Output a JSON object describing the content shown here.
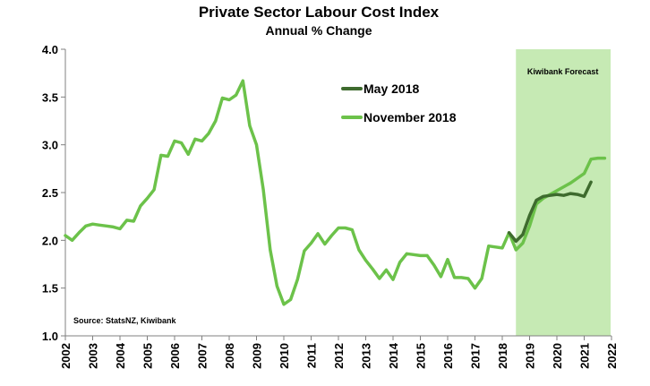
{
  "chart_data": {
    "type": "line",
    "title": "Private Sector Labour Cost Index",
    "subtitle": "Annual % Change",
    "source": "Source: StatsNZ, Kiwibank",
    "forecast_label": "Kiwibank Forecast",
    "forecast_start": 2018.5,
    "forecast_end": 2022,
    "forecast_color": "#c6eab4",
    "xlim": [
      2002,
      2022
    ],
    "ylim": [
      1.0,
      4.0
    ],
    "y_ticks": [
      "1.0",
      "1.5",
      "2.0",
      "2.5",
      "3.0",
      "3.5",
      "4.0"
    ],
    "x_ticks": [
      "2002",
      "2003",
      "2004",
      "2005",
      "2006",
      "2007",
      "2008",
      "2009",
      "2010",
      "2011",
      "2012",
      "2013",
      "2014",
      "2015",
      "2016",
      "2017",
      "2018",
      "2019",
      "2020",
      "2021",
      "2022"
    ],
    "grid": false,
    "legend_position": "top-center",
    "series": [
      {
        "name": "November 2018",
        "color": "#6cc24a",
        "x": [
          2002.0,
          2002.25,
          2002.5,
          2002.75,
          2003.0,
          2003.25,
          2003.5,
          2003.75,
          2004.0,
          2004.25,
          2004.5,
          2004.75,
          2005.0,
          2005.25,
          2005.5,
          2005.75,
          2006.0,
          2006.25,
          2006.5,
          2006.75,
          2007.0,
          2007.25,
          2007.5,
          2007.75,
          2008.0,
          2008.25,
          2008.5,
          2008.75,
          2009.0,
          2009.25,
          2009.5,
          2009.75,
          2010.0,
          2010.25,
          2010.5,
          2010.75,
          2011.0,
          2011.25,
          2011.5,
          2011.75,
          2012.0,
          2012.25,
          2012.5,
          2012.75,
          2013.0,
          2013.25,
          2013.5,
          2013.75,
          2014.0,
          2014.25,
          2014.5,
          2014.75,
          2015.0,
          2015.25,
          2015.5,
          2015.75,
          2016.0,
          2016.25,
          2016.5,
          2016.75,
          2017.0,
          2017.25,
          2017.5,
          2017.75,
          2018.0,
          2018.25,
          2018.5,
          2018.75,
          2019.0,
          2019.25,
          2019.5,
          2019.75,
          2020.0,
          2020.25,
          2020.5,
          2020.75,
          2021.0,
          2021.25,
          2021.5,
          2021.75
        ],
        "values": [
          2.05,
          2.0,
          2.08,
          2.15,
          2.17,
          2.16,
          2.15,
          2.14,
          2.12,
          2.21,
          2.2,
          2.36,
          2.44,
          2.53,
          2.89,
          2.88,
          3.04,
          3.02,
          2.9,
          3.06,
          3.04,
          3.12,
          3.25,
          3.49,
          3.47,
          3.52,
          3.67,
          3.2,
          3.0,
          2.53,
          1.9,
          1.52,
          1.33,
          1.38,
          1.59,
          1.89,
          1.97,
          2.07,
          1.96,
          2.05,
          2.13,
          2.13,
          2.11,
          1.9,
          1.79,
          1.7,
          1.6,
          1.69,
          1.59,
          1.77,
          1.86,
          1.85,
          1.84,
          1.84,
          1.74,
          1.62,
          1.8,
          1.61,
          1.61,
          1.6,
          1.5,
          1.6,
          1.94,
          1.93,
          1.92,
          2.08,
          1.9,
          1.97,
          2.15,
          2.38,
          2.44,
          2.48,
          2.52,
          2.56,
          2.6,
          2.65,
          2.7,
          2.85,
          2.86,
          2.86
        ]
      },
      {
        "name": "May 2018",
        "color": "#3e6b2e",
        "x": [
          2018.25,
          2018.5,
          2018.75,
          2019.0,
          2019.25,
          2019.5,
          2019.75,
          2020.0,
          2020.25,
          2020.5,
          2020.75,
          2021.0,
          2021.25
        ],
        "values": [
          2.08,
          1.99,
          2.06,
          2.26,
          2.42,
          2.46,
          2.47,
          2.48,
          2.47,
          2.49,
          2.48,
          2.46,
          2.61
        ]
      }
    ]
  }
}
